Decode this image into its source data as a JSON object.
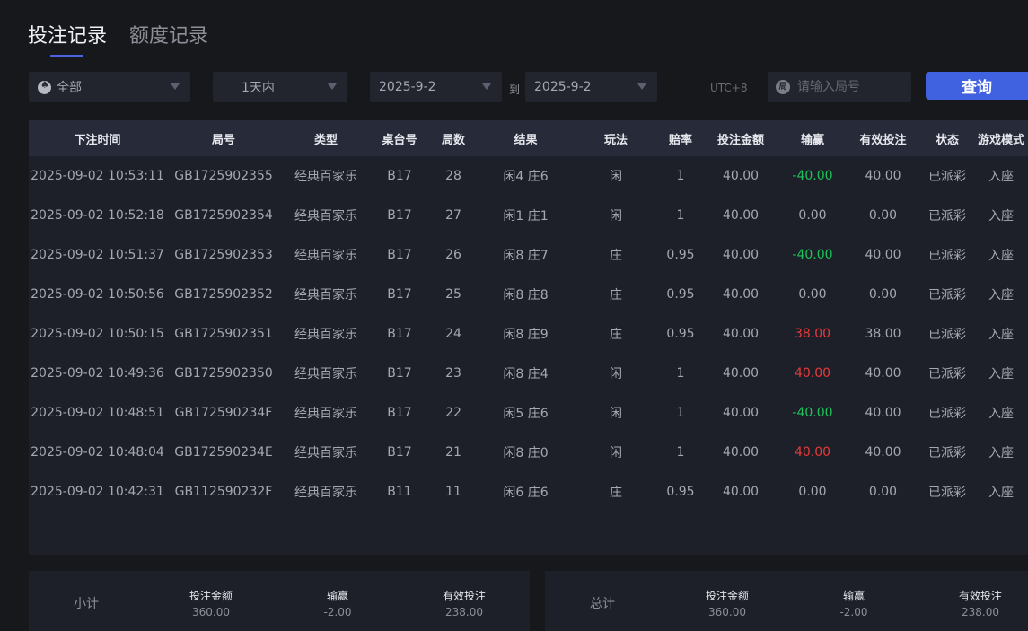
{
  "tabs": [
    {
      "label": "投注记录",
      "active": true
    },
    {
      "label": "额度记录",
      "active": false
    }
  ],
  "filters": {
    "game": "全部",
    "period": "1天内",
    "date_from": "2025-9-2",
    "to_label": "到",
    "date_to": "2025-9-2",
    "timezone": "UTC+8",
    "round_placeholder": "请输入局号",
    "round_icon_text": "局",
    "query_label": "查询"
  },
  "table": {
    "headers": [
      "下注时间",
      "局号",
      "类型",
      "桌台号",
      "局数",
      "结果",
      "玩法",
      "赔率",
      "投注金额",
      "输赢",
      "有效投注",
      "状态",
      "游戏模式"
    ],
    "rows": [
      [
        "2025-09-02 10:53:11",
        "GB1725902355",
        "经典百家乐",
        "B17",
        "28",
        "闲4 庄6",
        "闲",
        "1",
        "40.00",
        "-40.00",
        "40.00",
        "已派彩",
        "入座"
      ],
      [
        "2025-09-02 10:52:18",
        "GB1725902354",
        "经典百家乐",
        "B17",
        "27",
        "闲1 庄1",
        "闲",
        "1",
        "40.00",
        "0.00",
        "0.00",
        "已派彩",
        "入座"
      ],
      [
        "2025-09-02 10:51:37",
        "GB1725902353",
        "经典百家乐",
        "B17",
        "26",
        "闲8 庄7",
        "庄",
        "0.95",
        "40.00",
        "-40.00",
        "40.00",
        "已派彩",
        "入座"
      ],
      [
        "2025-09-02 10:50:56",
        "GB1725902352",
        "经典百家乐",
        "B17",
        "25",
        "闲8 庄8",
        "庄",
        "0.95",
        "40.00",
        "0.00",
        "0.00",
        "已派彩",
        "入座"
      ],
      [
        "2025-09-02 10:50:15",
        "GB1725902351",
        "经典百家乐",
        "B17",
        "24",
        "闲8 庄9",
        "庄",
        "0.95",
        "40.00",
        "38.00",
        "38.00",
        "已派彩",
        "入座"
      ],
      [
        "2025-09-02 10:49:36",
        "GB1725902350",
        "经典百家乐",
        "B17",
        "23",
        "闲8 庄4",
        "闲",
        "1",
        "40.00",
        "40.00",
        "40.00",
        "已派彩",
        "入座"
      ],
      [
        "2025-09-02 10:48:51",
        "GB172590234F",
        "经典百家乐",
        "B17",
        "22",
        "闲5 庄6",
        "闲",
        "1",
        "40.00",
        "-40.00",
        "40.00",
        "已派彩",
        "入座"
      ],
      [
        "2025-09-02 10:48:04",
        "GB172590234E",
        "经典百家乐",
        "B17",
        "21",
        "闲8 庄0",
        "闲",
        "1",
        "40.00",
        "40.00",
        "40.00",
        "已派彩",
        "入座"
      ],
      [
        "2025-09-02 10:42:31",
        "GB112590232F",
        "经典百家乐",
        "B11",
        "11",
        "闲6 庄6",
        "庄",
        "0.95",
        "40.00",
        "0.00",
        "0.00",
        "已派彩",
        "入座"
      ]
    ]
  },
  "subtotal": {
    "label": "小计",
    "bet_label": "投注金额",
    "bet": "360.00",
    "winloss_label": "输赢",
    "winloss": "-2.00",
    "valid_label": "有效投注",
    "valid": "238.00"
  },
  "total": {
    "label": "总计",
    "bet_label": "投注金额",
    "bet": "360.00",
    "winloss_label": "输赢",
    "winloss": "-2.00",
    "valid_label": "有效投注",
    "valid": "238.00"
  },
  "colors": {
    "accent": "#4061e0",
    "loss": "#1fc15a",
    "win": "#e53a3a"
  }
}
